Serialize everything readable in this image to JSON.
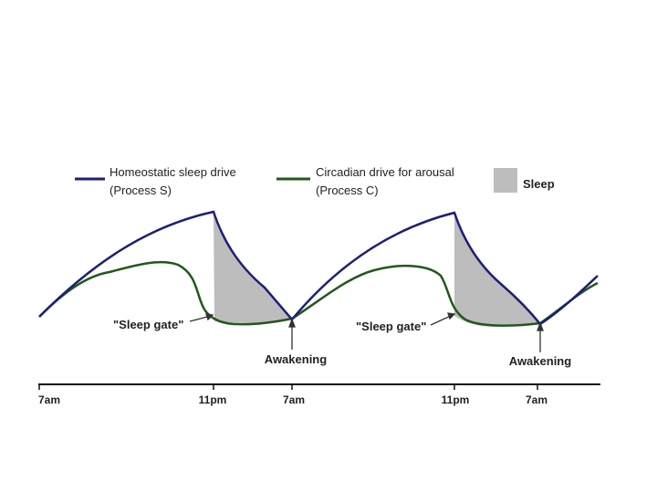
{
  "legend": {
    "homeostatic": {
      "line1": "Homeostatic sleep drive",
      "line2": "(Process S)",
      "color": "#1c1f78"
    },
    "circadian": {
      "line1": "Circadian drive for arousal",
      "line2": "(Process C)",
      "color": "#1f5a1a"
    },
    "sleep": {
      "label": "Sleep",
      "color": "#bdbdbd"
    }
  },
  "annotations": {
    "sleep_gate_1": "\"Sleep gate\"",
    "sleep_gate_2": "\"Sleep gate\"",
    "awakening_1": "Awakening",
    "awakening_2": "Awakening"
  },
  "axis": {
    "ticks": [
      "7am",
      "11pm",
      "7am",
      "11pm",
      "7am"
    ]
  }
}
